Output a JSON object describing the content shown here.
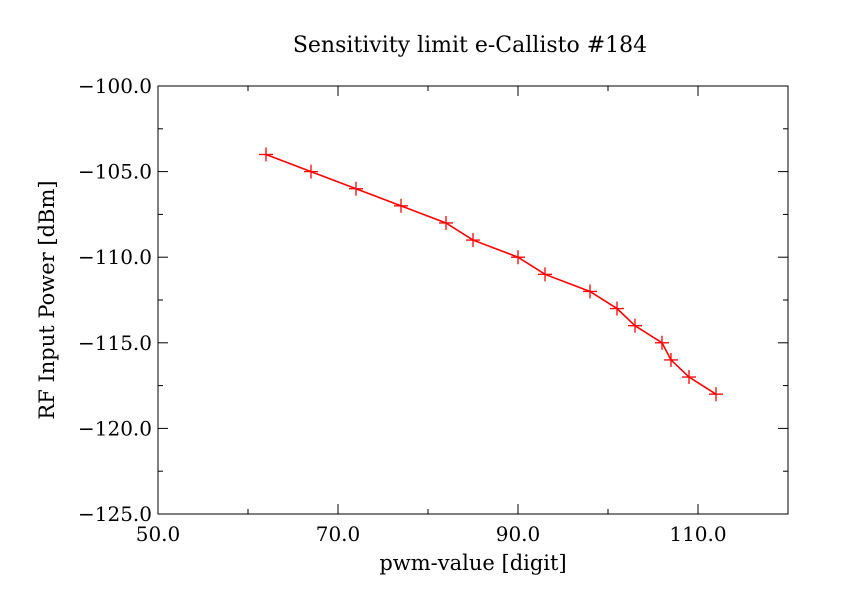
{
  "chart_data": {
    "type": "line",
    "title": "Sensitivity limit e-Callisto #184",
    "xlabel": "pwm-value [digit]",
    "ylabel": "RF Input Power [dBm]",
    "xlim": [
      50,
      120
    ],
    "ylim": [
      -125,
      -100
    ],
    "xticks": [
      50,
      70,
      90,
      110
    ],
    "xtick_labels": [
      "50.0",
      "70.0",
      "90.0",
      "110.0"
    ],
    "yticks": [
      -100,
      -105,
      -110,
      -115,
      -120,
      -125
    ],
    "ytick_labels": [
      "−100.0",
      "−105.0",
      "−110.0",
      "−115.0",
      "−120.0",
      "−125.0"
    ],
    "grid": false,
    "series": [
      {
        "name": "sensitivity",
        "color": "#ff0000",
        "marker": "plus",
        "x": [
          62,
          67,
          72,
          77,
          82,
          85,
          90,
          93,
          98,
          101,
          103,
          106,
          107,
          109,
          112
        ],
        "y": [
          -104,
          -105,
          -106,
          -107,
          -108,
          -109,
          -110,
          -111,
          -112,
          -113,
          -114,
          -115,
          -116,
          -117,
          -118
        ]
      }
    ]
  }
}
